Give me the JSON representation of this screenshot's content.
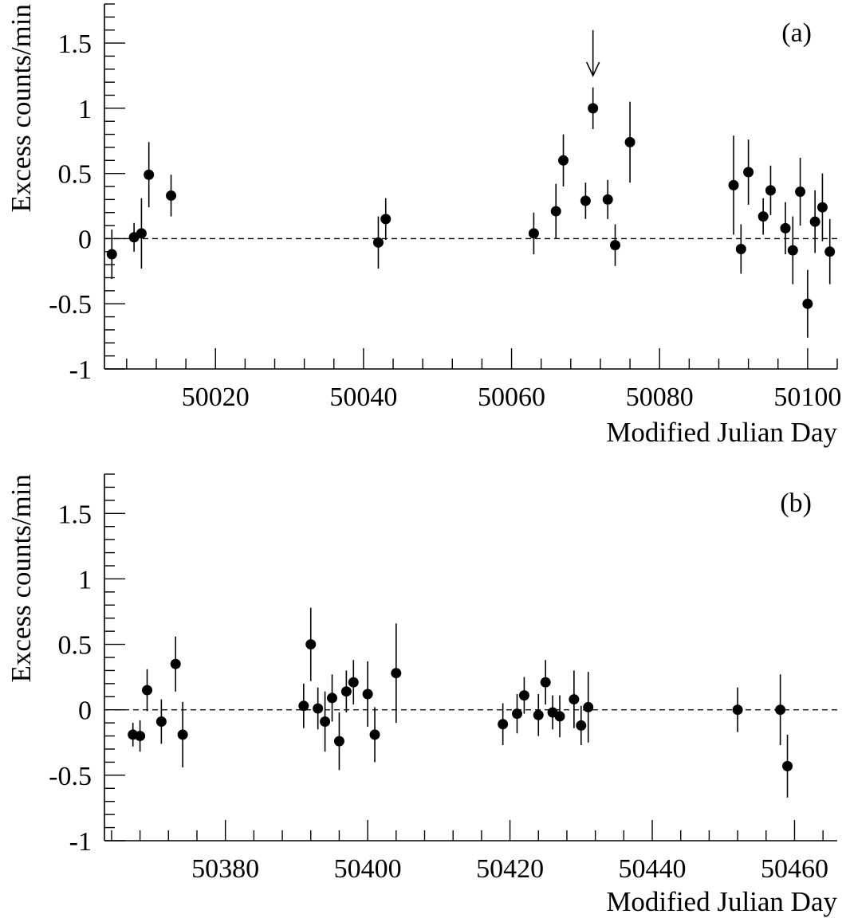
{
  "chart_data": [
    {
      "type": "scatter",
      "panel_label": "(a)",
      "xlabel": "Modified Julian Day",
      "ylabel": "Excess counts/min",
      "xlim": [
        50005,
        50104
      ],
      "ylim": [
        -1,
        1.8
      ],
      "x_ticks": [
        50020,
        50040,
        50060,
        50080,
        50100
      ],
      "y_ticks": [
        -1,
        -0.5,
        0,
        0.5,
        1,
        1.5
      ],
      "y_tick_labels": [
        "-1",
        "-0.5",
        "0",
        "0.5",
        "1",
        "1.5"
      ],
      "reference_line": {
        "y": 0,
        "style": "dashed"
      },
      "arrow_annotation": {
        "x": 50071,
        "y_from": 1.6,
        "y_to": 1.25
      },
      "points": [
        {
          "x": 50006,
          "y": -0.12,
          "err": 0.19
        },
        {
          "x": 50009,
          "y": 0.01,
          "err": 0.11
        },
        {
          "x": 50010,
          "y": 0.04,
          "err": 0.27
        },
        {
          "x": 50011,
          "y": 0.49,
          "err": 0.25
        },
        {
          "x": 50014,
          "y": 0.33,
          "err": 0.16
        },
        {
          "x": 50042,
          "y": -0.03,
          "err": 0.2
        },
        {
          "x": 50043,
          "y": 0.15,
          "err": 0.16
        },
        {
          "x": 50063,
          "y": 0.04,
          "err": 0.16
        },
        {
          "x": 50066,
          "y": 0.21,
          "err": 0.21
        },
        {
          "x": 50067,
          "y": 0.6,
          "err": 0.2
        },
        {
          "x": 50070,
          "y": 0.29,
          "err": 0.14
        },
        {
          "x": 50071,
          "y": 1.0,
          "err": 0.16
        },
        {
          "x": 50073,
          "y": 0.3,
          "err": 0.15
        },
        {
          "x": 50074,
          "y": -0.05,
          "err": 0.16
        },
        {
          "x": 50076,
          "y": 0.74,
          "err": 0.31
        },
        {
          "x": 50090,
          "y": 0.41,
          "err": 0.38
        },
        {
          "x": 50091,
          "y": -0.08,
          "err": 0.19
        },
        {
          "x": 50092,
          "y": 0.51,
          "err": 0.25
        },
        {
          "x": 50094,
          "y": 0.17,
          "err": 0.14
        },
        {
          "x": 50095,
          "y": 0.37,
          "err": 0.19
        },
        {
          "x": 50097,
          "y": 0.08,
          "err": 0.2
        },
        {
          "x": 50098,
          "y": -0.09,
          "err": 0.26
        },
        {
          "x": 50099,
          "y": 0.36,
          "err": 0.26
        },
        {
          "x": 50100,
          "y": -0.5,
          "err": 0.26
        },
        {
          "x": 50101,
          "y": 0.13,
          "err": 0.24
        },
        {
          "x": 50102,
          "y": 0.24,
          "err": 0.26
        },
        {
          "x": 50103,
          "y": -0.1,
          "err": 0.25
        }
      ]
    },
    {
      "type": "scatter",
      "panel_label": "(b)",
      "xlabel": "Modified Julian Day",
      "ylabel": "Excess counts/min",
      "xlim": [
        50363,
        50466
      ],
      "ylim": [
        -1,
        1.8
      ],
      "x_ticks": [
        50380,
        50400,
        50420,
        50440,
        50460
      ],
      "y_ticks": [
        -1,
        -0.5,
        0,
        0.5,
        1,
        1.5
      ],
      "y_tick_labels": [
        "-1",
        "-0.5",
        "0",
        "0.5",
        "1",
        "1.5"
      ],
      "reference_line": {
        "y": 0,
        "style": "dashed"
      },
      "points": [
        {
          "x": 50367,
          "y": -0.19,
          "err": 0.09
        },
        {
          "x": 50368,
          "y": -0.2,
          "err": 0.12
        },
        {
          "x": 50369,
          "y": 0.15,
          "err": 0.16
        },
        {
          "x": 50371,
          "y": -0.09,
          "err": 0.17
        },
        {
          "x": 50373,
          "y": 0.35,
          "err": 0.21
        },
        {
          "x": 50374,
          "y": -0.19,
          "err": 0.25
        },
        {
          "x": 50391,
          "y": 0.03,
          "err": 0.17
        },
        {
          "x": 50392,
          "y": 0.5,
          "err": 0.28
        },
        {
          "x": 50393,
          "y": 0.01,
          "err": 0.16
        },
        {
          "x": 50394,
          "y": -0.09,
          "err": 0.23
        },
        {
          "x": 50395,
          "y": 0.09,
          "err": 0.18
        },
        {
          "x": 50396,
          "y": -0.24,
          "err": 0.22
        },
        {
          "x": 50397,
          "y": 0.14,
          "err": 0.16
        },
        {
          "x": 50398,
          "y": 0.21,
          "err": 0.17
        },
        {
          "x": 50400,
          "y": 0.12,
          "err": 0.25
        },
        {
          "x": 50401,
          "y": -0.19,
          "err": 0.21
        },
        {
          "x": 50404,
          "y": 0.28,
          "err": 0.38
        },
        {
          "x": 50419,
          "y": -0.11,
          "err": 0.16
        },
        {
          "x": 50421,
          "y": -0.03,
          "err": 0.15
        },
        {
          "x": 50422,
          "y": 0.11,
          "err": 0.14
        },
        {
          "x": 50424,
          "y": -0.04,
          "err": 0.16
        },
        {
          "x": 50425,
          "y": 0.21,
          "err": 0.17
        },
        {
          "x": 50426,
          "y": -0.02,
          "err": 0.13
        },
        {
          "x": 50427,
          "y": -0.05,
          "err": 0.16
        },
        {
          "x": 50429,
          "y": 0.08,
          "err": 0.22
        },
        {
          "x": 50430,
          "y": -0.12,
          "err": 0.15
        },
        {
          "x": 50431,
          "y": 0.02,
          "err": 0.27
        },
        {
          "x": 50452,
          "y": 0.0,
          "err": 0.17
        },
        {
          "x": 50458,
          "y": 0.0,
          "err": 0.27
        },
        {
          "x": 50459,
          "y": -0.43,
          "err": 0.24
        }
      ]
    }
  ]
}
